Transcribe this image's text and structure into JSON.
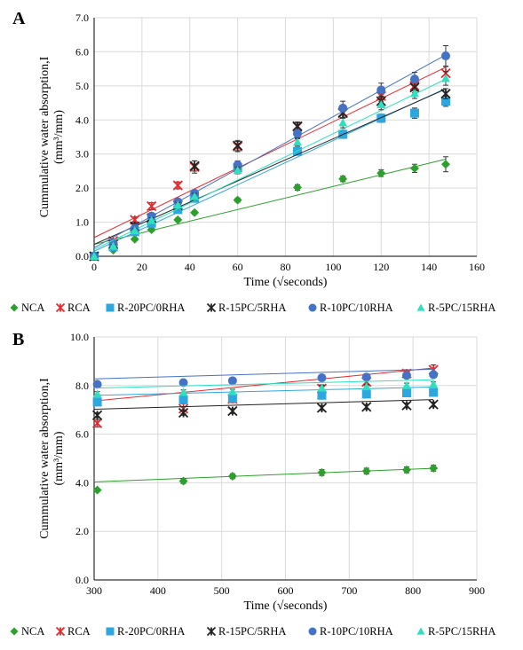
{
  "chart_data": [
    {
      "type": "scatter",
      "panel_label": "A",
      "xlabel": "Time (√seconds)",
      "ylabel_line1": "Cummulative water absorption,I",
      "ylabel_line2": "(mm³/mm)",
      "xlim": [
        0,
        160
      ],
      "ylim": [
        0,
        7
      ],
      "xticks": [
        "0",
        "20",
        "40",
        "60",
        "80",
        "100",
        "120",
        "140",
        "160"
      ],
      "yticks": [
        "0.0",
        "1.0",
        "2.0",
        "3.0",
        "4.0",
        "5.0",
        "6.0",
        "7.0"
      ],
      "grid": true,
      "legend_position": "bottom",
      "series": [
        {
          "name": "NCA",
          "color": "#2ca02c",
          "marker": "diamond",
          "x": [
            0,
            8,
            17,
            24,
            35,
            42,
            60,
            85,
            104,
            120,
            134,
            147
          ],
          "y": [
            0,
            0.18,
            0.5,
            0.78,
            1.07,
            1.28,
            1.65,
            2.02,
            2.27,
            2.44,
            2.58,
            2.7
          ],
          "err": [
            0,
            0.03,
            0.04,
            0.05,
            0.05,
            0.05,
            0.06,
            0.08,
            0.08,
            0.1,
            0.12,
            0.22
          ],
          "fit": [
            0.35,
            0.017
          ]
        },
        {
          "name": "RCA",
          "color": "#e8282b",
          "marker": "star",
          "x": [
            0,
            8,
            17,
            24,
            35,
            42,
            60,
            85,
            104,
            120,
            134,
            147
          ],
          "y": [
            0,
            0.45,
            1.07,
            1.47,
            2.08,
            2.62,
            3.22,
            3.8,
            4.22,
            4.7,
            5.0,
            5.37
          ],
          "err": [
            0,
            0.05,
            0.08,
            0.1,
            0.1,
            0.18,
            0.15,
            0.12,
            0.15,
            0.15,
            0.15,
            0.2
          ],
          "fit": [
            0.55,
            0.034
          ]
        },
        {
          "name": "R-20PC/0RHA",
          "color": "#2ea7e0",
          "marker": "square",
          "x": [
            0,
            8,
            17,
            24,
            35,
            42,
            60,
            85,
            104,
            120,
            134,
            147
          ],
          "y": [
            0,
            0.28,
            0.72,
            0.97,
            1.37,
            1.7,
            2.6,
            3.08,
            3.58,
            4.05,
            4.2,
            4.55
          ],
          "err": [
            0,
            0.04,
            0.06,
            0.08,
            0.08,
            0.1,
            0.1,
            0.1,
            0.12,
            0.12,
            0.15,
            0.15
          ],
          "fit": [
            0.15,
            0.0325
          ]
        },
        {
          "name": "R-15PC/5RHA",
          "color": "#222222",
          "marker": "asterisk",
          "x": [
            0,
            8,
            17,
            24,
            35,
            42,
            60,
            85,
            104,
            120,
            134,
            147
          ],
          "y": [
            0,
            0.35,
            0.88,
            1.12,
            1.5,
            2.65,
            3.25,
            3.82,
            4.2,
            4.55,
            4.95,
            4.77
          ],
          "err": [
            0,
            0.05,
            0.08,
            0.1,
            0.1,
            0.15,
            0.15,
            0.12,
            0.15,
            0.15,
            0.15,
            0.15
          ],
          "fit": [
            0.35,
            0.031
          ]
        },
        {
          "name": "R-10PC/10RHA",
          "color": "#4472c4",
          "marker": "circle",
          "x": [
            0,
            8,
            17,
            24,
            35,
            42,
            60,
            85,
            104,
            120,
            134,
            147
          ],
          "y": [
            0,
            0.38,
            0.82,
            1.18,
            1.6,
            1.85,
            2.68,
            3.6,
            4.35,
            4.88,
            5.2,
            5.88
          ],
          "err": [
            0,
            0.05,
            0.06,
            0.08,
            0.08,
            0.1,
            0.12,
            0.15,
            0.2,
            0.2,
            0.2,
            0.3
          ],
          "fit": [
            0.25,
            0.0385
          ]
        },
        {
          "name": "R-5PC/15RHA",
          "color": "#2ee0c0",
          "marker": "triangle",
          "x": [
            0,
            8,
            17,
            24,
            35,
            42,
            60,
            85,
            104,
            120,
            134,
            147
          ],
          "y": [
            0,
            0.3,
            0.75,
            1.05,
            1.5,
            1.75,
            2.52,
            3.35,
            3.92,
            4.45,
            4.78,
            5.22
          ],
          "err": [
            0,
            0.04,
            0.06,
            0.08,
            0.08,
            0.1,
            0.1,
            0.12,
            0.15,
            0.15,
            0.15,
            0.2
          ],
          "fit": [
            0.2,
            0.034
          ]
        }
      ]
    },
    {
      "type": "scatter",
      "panel_label": "B",
      "xlabel": "Time (√seconds)",
      "ylabel_line1": "Cummulative water absorption,I",
      "ylabel_line2": "(mm³/mm)",
      "xlim": [
        300,
        900
      ],
      "ylim": [
        0,
        10
      ],
      "xticks": [
        "300",
        "400",
        "500",
        "600",
        "700",
        "800",
        "900"
      ],
      "yticks": [
        "0.0",
        "2.0",
        "4.0",
        "6.0",
        "8.0",
        "10.0"
      ],
      "grid": true,
      "legend_position": "bottom",
      "series": [
        {
          "name": "NCA",
          "color": "#2ca02c",
          "marker": "diamond",
          "x": [
            305,
            440,
            517,
            657,
            727,
            790,
            832
          ],
          "y": [
            3.7,
            4.07,
            4.27,
            4.42,
            4.48,
            4.53,
            4.6
          ],
          "err": [
            0,
            0.1,
            0.1,
            0.12,
            0.12,
            0.12,
            0.12
          ],
          "fit": [
            3.72,
            0.00105
          ]
        },
        {
          "name": "RCA",
          "color": "#e8282b",
          "marker": "star",
          "x": [
            305,
            440,
            517,
            657,
            727,
            790,
            832
          ],
          "y": [
            6.45,
            7.05,
            7.45,
            7.88,
            8.15,
            8.5,
            8.65
          ],
          "err": [
            0.15,
            0.2,
            0.15,
            0.15,
            0.15,
            0.15,
            0.2
          ],
          "fit": [
            6.6,
            0.00255
          ]
        },
        {
          "name": "R-20PC/0RHA",
          "color": "#2ea7e0",
          "marker": "square",
          "x": [
            305,
            440,
            517,
            657,
            727,
            790,
            832
          ],
          "y": [
            7.32,
            7.42,
            7.48,
            7.6,
            7.65,
            7.7,
            7.72
          ],
          "err": [
            0.1,
            0.1,
            0.1,
            0.1,
            0.1,
            0.1,
            0.1
          ],
          "fit": [
            7.4,
            0.00065
          ]
        },
        {
          "name": "R-15PC/5RHA",
          "color": "#222222",
          "marker": "asterisk",
          "x": [
            305,
            440,
            517,
            657,
            727,
            790,
            832
          ],
          "y": [
            6.78,
            6.88,
            6.95,
            7.08,
            7.12,
            7.18,
            7.22
          ],
          "err": [
            0.1,
            0.1,
            0.1,
            0.1,
            0.1,
            0.1,
            0.1
          ],
          "fit": [
            6.8,
            0.00075
          ]
        },
        {
          "name": "R-10PC/10RHA",
          "color": "#4472c4",
          "marker": "circle",
          "x": [
            305,
            440,
            517,
            657,
            727,
            790,
            832
          ],
          "y": [
            8.05,
            8.12,
            8.2,
            8.32,
            8.35,
            8.42,
            8.45
          ],
          "err": [
            0.1,
            0.1,
            0.1,
            0.1,
            0.1,
            0.1,
            0.1
          ],
          "fit": [
            8.05,
            0.00075
          ]
        },
        {
          "name": "R-5PC/15RHA",
          "color": "#2ee0c0",
          "marker": "triangle",
          "x": [
            305,
            440,
            517,
            657,
            727,
            790,
            832
          ],
          "y": [
            7.65,
            7.72,
            7.75,
            7.9,
            7.95,
            8.0,
            8.05
          ],
          "err": [
            0.1,
            0.1,
            0.1,
            0.1,
            0.1,
            0.1,
            0.1
          ],
          "fit": [
            7.7,
            0.00065
          ]
        }
      ]
    }
  ]
}
